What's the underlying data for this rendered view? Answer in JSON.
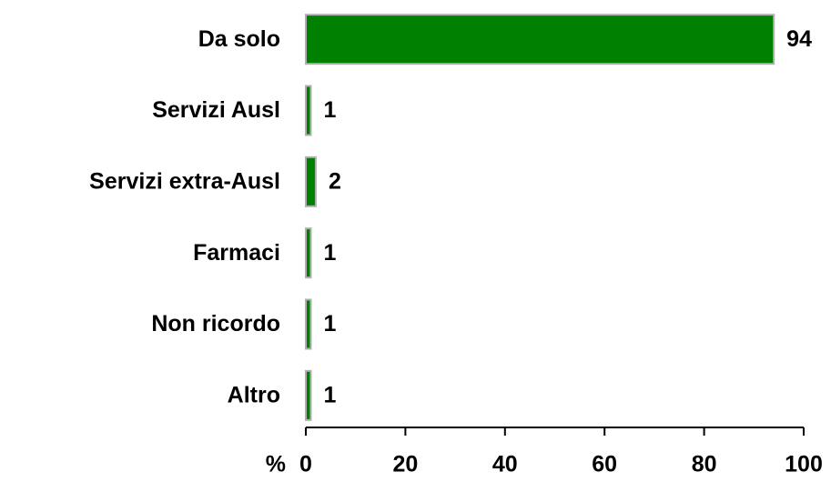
{
  "chart_data": {
    "type": "barh",
    "categories": [
      "Da solo",
      "Servizi Ausl",
      "Servizi extra-Ausl",
      "Farmaci",
      "Non ricordo",
      "Altro"
    ],
    "values": [
      94,
      1,
      2,
      1,
      1,
      1
    ],
    "color": "#008000",
    "xlabel": "%",
    "xlim": [
      0,
      100
    ],
    "xticks": [
      0,
      20,
      40,
      60,
      80,
      100
    ],
    "grid": false
  }
}
